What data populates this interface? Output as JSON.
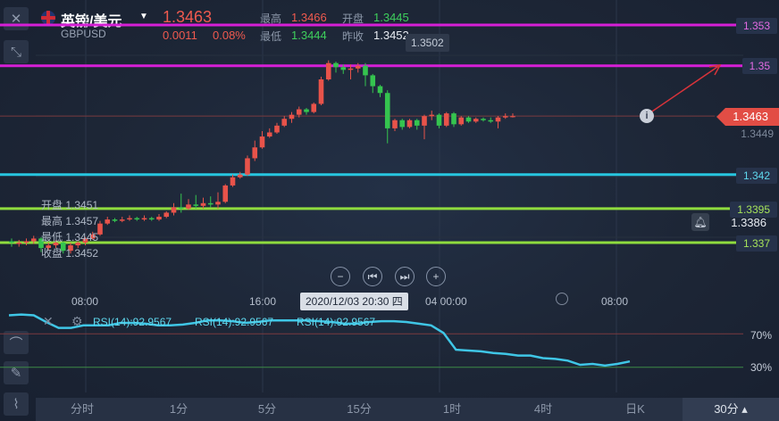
{
  "header": {
    "title": "英镑/美元",
    "symbol": "GBPUSD",
    "price": "1.3463",
    "change": "0.0011",
    "change_pct": "0.08%",
    "high_label": "最高",
    "high_value": "1.3466",
    "open_label": "开盘",
    "open_value": "1.3445",
    "low_label": "最低",
    "low_value": "1.3444",
    "prev_close_label": "昨收",
    "prev_close_value": "1.3452",
    "peak_label": "1.3502"
  },
  "price_axis": {
    "levels": [
      "1.353",
      "1.35",
      "1.3463",
      "1.3449",
      "1.342",
      "1.3395",
      "1.3386",
      "1.337"
    ]
  },
  "hover_box": {
    "open_label": "开盘",
    "open_value": "1.3451",
    "high_label": "最高",
    "high_value": "1.3457",
    "low_label": "最低",
    "low_value": "1.3445",
    "close_label": "收盘",
    "close_value": "1.3452"
  },
  "controls": [
    "zoom-out",
    "prev",
    "next",
    "zoom-in"
  ],
  "time_axis": {
    "ticks": [
      "08:00",
      "16:00",
      "04 00:00",
      "08:00"
    ],
    "crosshair": "2020/12/03 20:30 四"
  },
  "rsi": {
    "labels": [
      "RSI(14):92.9567",
      "RSI(14):92.9567",
      "RSI(14):92.9567"
    ],
    "upper": "70%",
    "lower": "30%",
    "values": [
      92,
      93,
      92,
      84,
      77,
      77,
      80,
      80,
      80,
      83,
      83,
      82,
      80,
      80,
      81,
      83,
      86,
      86,
      85,
      83,
      84,
      86,
      86,
      86,
      86,
      85,
      84,
      82,
      82,
      84,
      85,
      85,
      84,
      82,
      80,
      71,
      51,
      50,
      49,
      47,
      46,
      44,
      44,
      41,
      40,
      38,
      33,
      34,
      32,
      34,
      37
    ]
  },
  "chart_data": {
    "type": "candlestick",
    "symbol": "GBPUSD",
    "y_axis": [
      1.3365,
      1.3535
    ],
    "horizontal_lines": [
      {
        "value": 1.353,
        "color": "#d61fd6"
      },
      {
        "value": 1.35,
        "color": "#d61fd6"
      },
      {
        "value": 1.342,
        "color": "#27c6e0"
      },
      {
        "value": 1.3395,
        "color": "#8fdc3e"
      },
      {
        "value": 1.337,
        "color": "#8fdc3e"
      }
    ],
    "current_price": 1.3463,
    "candles": [
      [
        1.3371,
        1.337,
        1.3367,
        1.3373
      ],
      [
        1.3369,
        1.337,
        1.3367,
        1.3372
      ],
      [
        1.337,
        1.3371,
        1.3368,
        1.3373
      ],
      [
        1.3371,
        1.3373,
        1.3369,
        1.3375
      ],
      [
        1.3373,
        1.3366,
        1.3363,
        1.3374
      ],
      [
        1.3366,
        1.3368,
        1.3364,
        1.337
      ],
      [
        1.3368,
        1.337,
        1.3366,
        1.3372
      ],
      [
        1.337,
        1.3364,
        1.3362,
        1.3371
      ],
      [
        1.3364,
        1.3368,
        1.3362,
        1.337
      ],
      [
        1.3368,
        1.337,
        1.3366,
        1.3371
      ],
      [
        1.337,
        1.3373,
        1.3368,
        1.3374
      ],
      [
        1.3373,
        1.3376,
        1.3372,
        1.3378
      ],
      [
        1.3376,
        1.3384,
        1.3375,
        1.3386
      ],
      [
        1.3384,
        1.3387,
        1.3383,
        1.3389
      ],
      [
        1.3387,
        1.3386,
        1.3385,
        1.3388
      ],
      [
        1.3386,
        1.3387,
        1.3385,
        1.3389
      ],
      [
        1.3387,
        1.3388,
        1.3386,
        1.339
      ],
      [
        1.3388,
        1.3387,
        1.3386,
        1.3389
      ],
      [
        1.3387,
        1.3388,
        1.3386,
        1.339
      ],
      [
        1.3388,
        1.3387,
        1.3386,
        1.3389
      ],
      [
        1.3387,
        1.3389,
        1.3386,
        1.3391
      ],
      [
        1.3389,
        1.3392,
        1.3388,
        1.3393
      ],
      [
        1.3392,
        1.3396,
        1.339,
        1.3399
      ],
      [
        1.3396,
        1.3395,
        1.3392,
        1.3406
      ],
      [
        1.3395,
        1.3398,
        1.3394,
        1.3402
      ],
      [
        1.3398,
        1.3397,
        1.3395,
        1.3405
      ],
      [
        1.3397,
        1.3399,
        1.3395,
        1.3403
      ],
      [
        1.3399,
        1.3398,
        1.3396,
        1.3404
      ],
      [
        1.3398,
        1.34,
        1.3395,
        1.3407
      ],
      [
        1.34,
        1.3412,
        1.3399,
        1.3413
      ],
      [
        1.3412,
        1.3418,
        1.3411,
        1.342
      ],
      [
        1.3418,
        1.342,
        1.3417,
        1.3422
      ],
      [
        1.342,
        1.3432,
        1.3419,
        1.3434
      ],
      [
        1.3432,
        1.344,
        1.343,
        1.3445
      ],
      [
        1.344,
        1.3448,
        1.3439,
        1.3452
      ],
      [
        1.3448,
        1.3451,
        1.3447,
        1.3454
      ],
      [
        1.3451,
        1.3456,
        1.345,
        1.3458
      ],
      [
        1.3456,
        1.3461,
        1.3455,
        1.3463
      ],
      [
        1.3461,
        1.3464,
        1.3458,
        1.3466
      ],
      [
        1.3464,
        1.3468,
        1.3462,
        1.347
      ],
      [
        1.3468,
        1.3466,
        1.3464,
        1.3469
      ],
      [
        1.3466,
        1.3472,
        1.3465,
        1.3473
      ],
      [
        1.3472,
        1.349,
        1.3471,
        1.3492
      ],
      [
        1.349,
        1.3502,
        1.3489,
        1.3504
      ],
      [
        1.3502,
        1.3499,
        1.3495,
        1.3503
      ],
      [
        1.3499,
        1.3497,
        1.3494,
        1.3501
      ],
      [
        1.3497,
        1.3498,
        1.349,
        1.3501
      ],
      [
        1.3498,
        1.35,
        1.3495,
        1.3502
      ],
      [
        1.35,
        1.3493,
        1.3485,
        1.3502
      ],
      [
        1.3493,
        1.3485,
        1.348,
        1.3494
      ],
      [
        1.3485,
        1.348,
        1.3477,
        1.3486
      ],
      [
        1.348,
        1.3454,
        1.3443,
        1.3482
      ],
      [
        1.3454,
        1.346,
        1.3452,
        1.3461
      ],
      [
        1.346,
        1.3455,
        1.3453,
        1.3461
      ],
      [
        1.3455,
        1.346,
        1.3454,
        1.3461
      ],
      [
        1.346,
        1.3456,
        1.3453,
        1.3461
      ],
      [
        1.3456,
        1.3463,
        1.3446,
        1.3464
      ],
      [
        1.3463,
        1.3464,
        1.346,
        1.3467
      ],
      [
        1.3464,
        1.3456,
        1.3454,
        1.3465
      ],
      [
        1.3456,
        1.3465,
        1.3455,
        1.3466
      ],
      [
        1.3465,
        1.3457,
        1.3455,
        1.3466
      ],
      [
        1.3457,
        1.3462,
        1.3456,
        1.3463
      ],
      [
        1.3462,
        1.3459,
        1.3458,
        1.3463
      ],
      [
        1.3459,
        1.3461,
        1.3458,
        1.3462
      ],
      [
        1.3461,
        1.346,
        1.3459,
        1.3462
      ],
      [
        1.346,
        1.3459,
        1.3458,
        1.3462
      ],
      [
        1.3459,
        1.3462,
        1.3454,
        1.3463
      ],
      [
        1.3462,
        1.3463,
        1.3461,
        1.3465
      ],
      [
        1.3463,
        1.3463,
        1.3462,
        1.3465
      ]
    ]
  },
  "bottom_tabs": [
    "分时",
    "1分",
    "5分",
    "15分",
    "1时",
    "4时",
    "日K",
    "30分"
  ]
}
